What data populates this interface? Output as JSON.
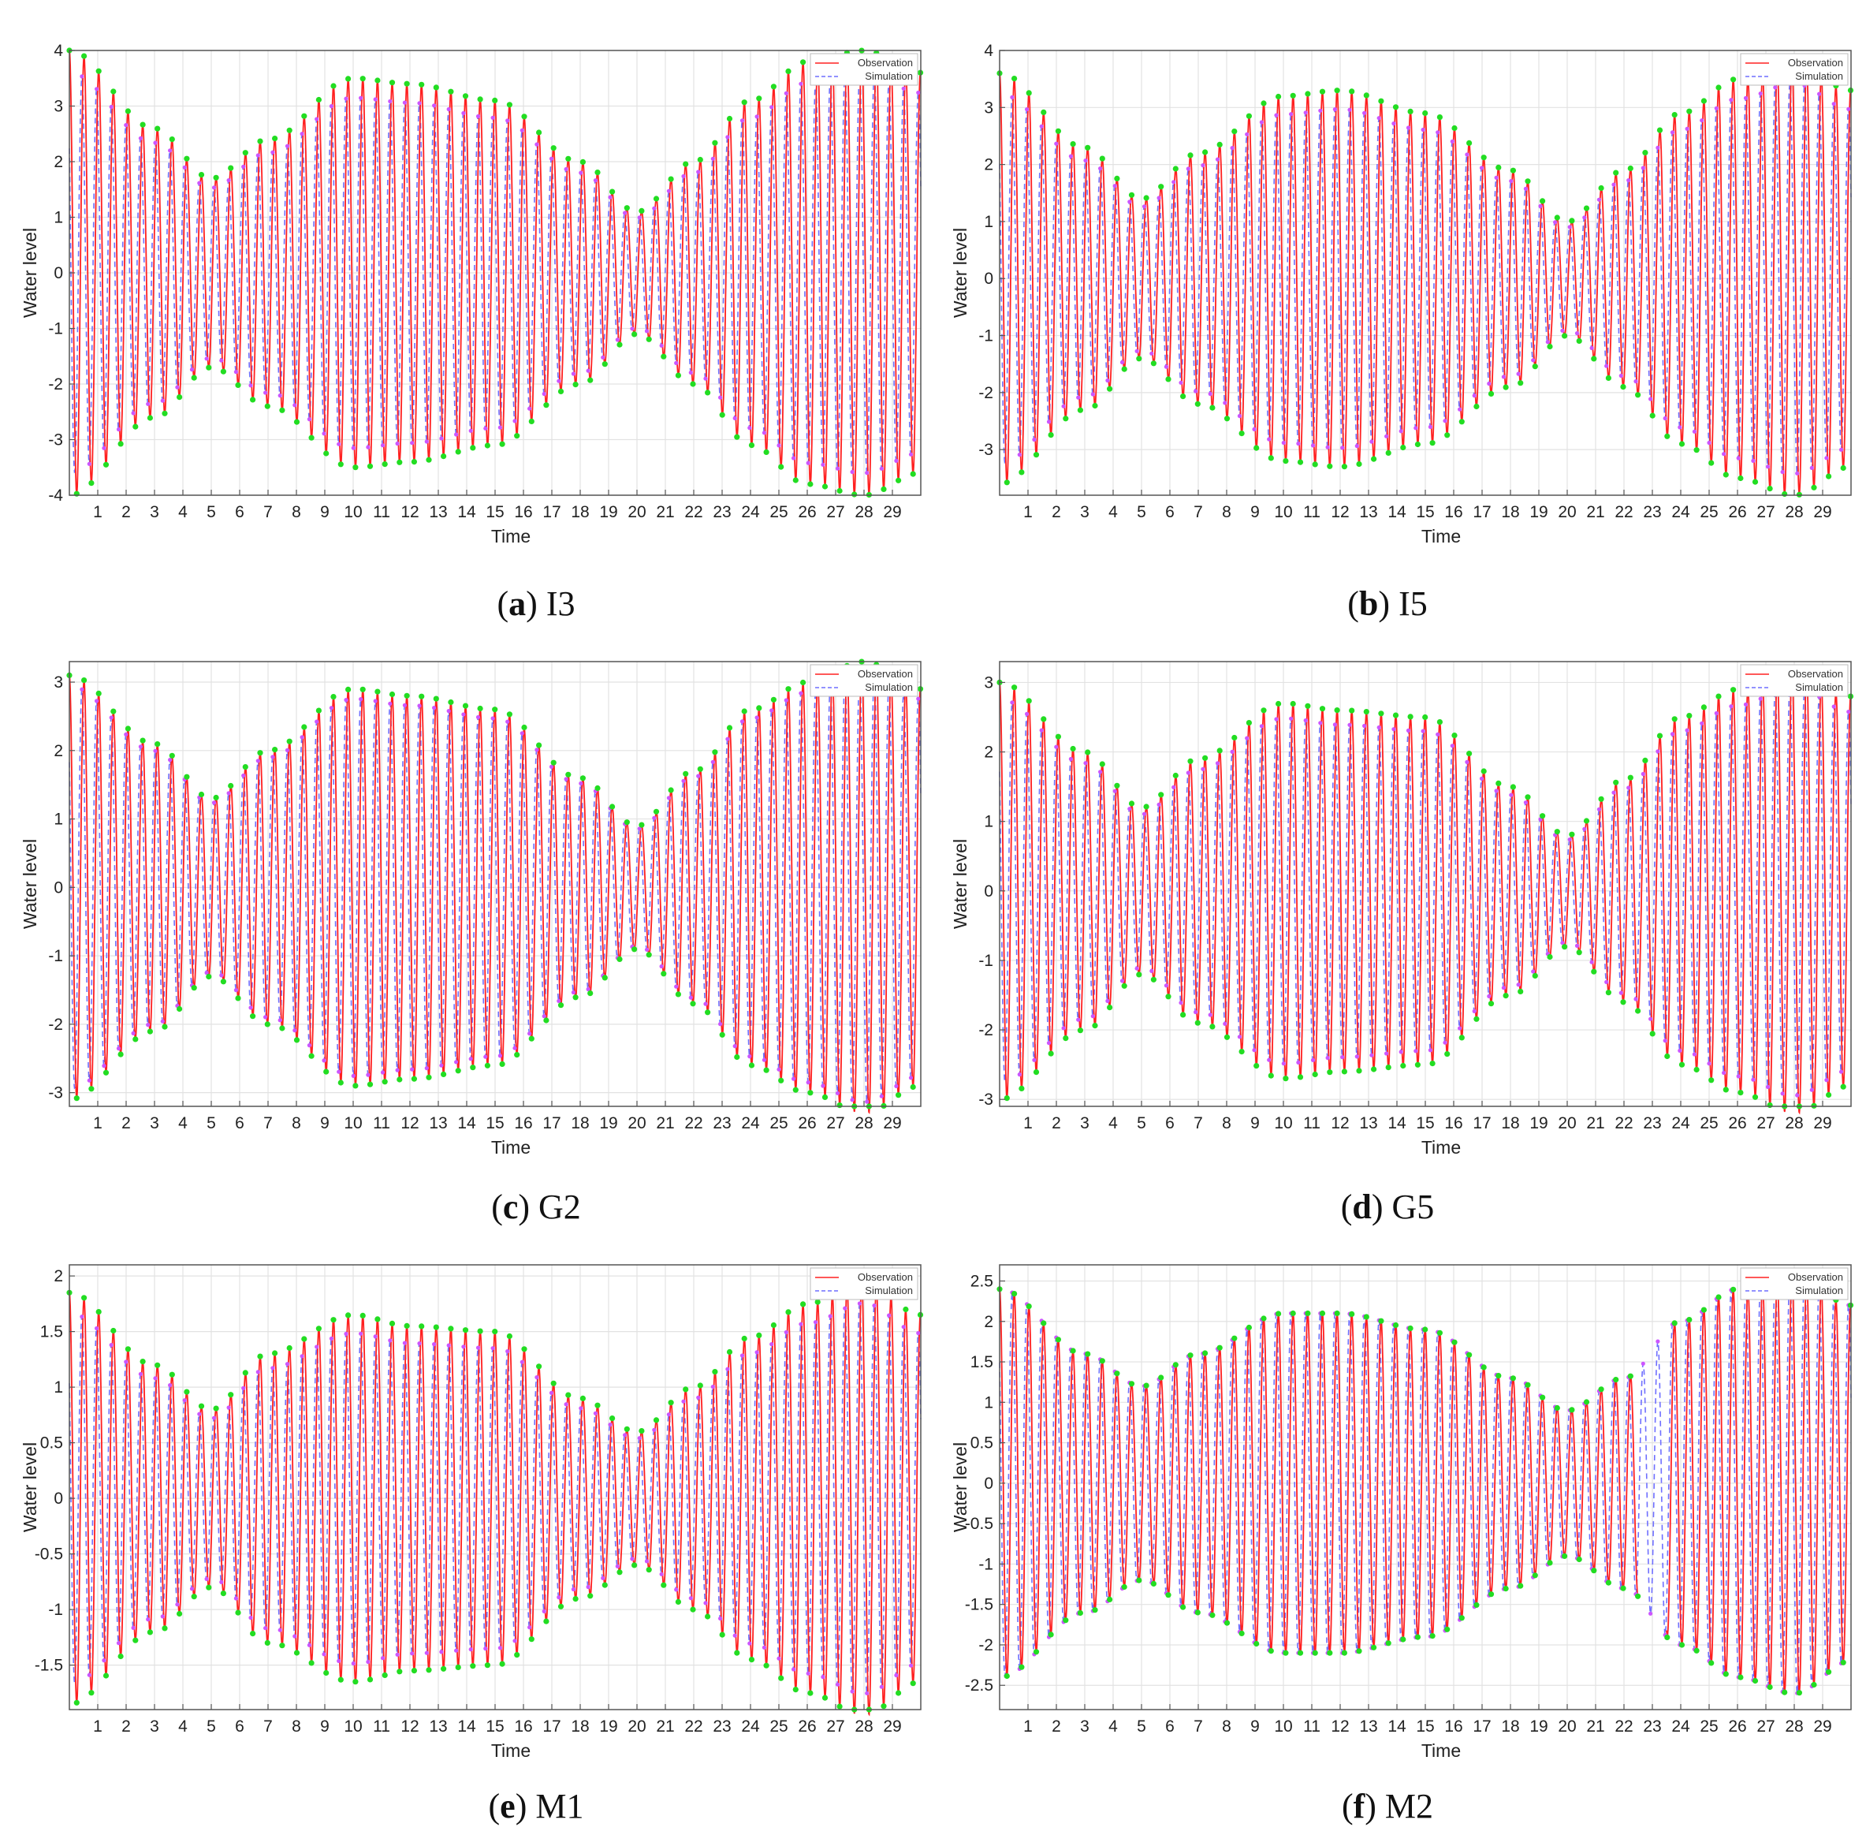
{
  "legend": {
    "observation": "Observation",
    "simulation": "Simulation"
  },
  "colors": {
    "observation": "#ff2020",
    "simulation": "#6f6fff",
    "observation_peak": "#22dd22",
    "simulation_peak": "#cc55ff",
    "grid": "#e2e2e2",
    "axis": "#555555"
  },
  "chart_data": [
    {
      "id": "a",
      "letter": "a",
      "station": "I3",
      "type": "line",
      "xlabel": "Time",
      "ylabel": "Water level",
      "xlim": [
        0,
        30
      ],
      "ylim": [
        -4,
        4
      ],
      "xticks": [
        1,
        2,
        3,
        4,
        5,
        6,
        7,
        8,
        9,
        10,
        11,
        12,
        13,
        14,
        15,
        16,
        17,
        18,
        19,
        20,
        21,
        22,
        23,
        24,
        25,
        26,
        27,
        28,
        29
      ],
      "yticks": [
        -4,
        -3,
        -2,
        -1,
        0,
        1,
        2,
        3,
        4
      ],
      "grid": true,
      "legend_position": "top-right",
      "envelope": {
        "x": [
          0,
          3,
          5,
          7,
          10,
          12,
          15,
          18,
          20,
          22,
          24,
          26,
          28,
          30
        ],
        "amplitude": [
          4.0,
          2.6,
          1.7,
          2.4,
          3.5,
          3.4,
          3.1,
          2.0,
          1.1,
          2.0,
          3.1,
          3.8,
          4.0,
          3.6
        ]
      },
      "series": [
        {
          "name": "Observation",
          "period_days": 0.517,
          "phase": 0.0
        },
        {
          "name": "Simulation",
          "period_days": 0.517,
          "phase": 0.9,
          "amplitude_scale": 0.9
        }
      ]
    },
    {
      "id": "b",
      "letter": "b",
      "station": "I5",
      "type": "line",
      "xlabel": "Time",
      "ylabel": "Water level",
      "xlim": [
        0,
        30
      ],
      "ylim": [
        -3.8,
        4
      ],
      "xticks": [
        1,
        2,
        3,
        4,
        5,
        6,
        7,
        8,
        9,
        10,
        11,
        12,
        13,
        14,
        15,
        16,
        17,
        18,
        19,
        20,
        21,
        22,
        23,
        24,
        25,
        26,
        27,
        28,
        29
      ],
      "yticks": [
        -3,
        -2,
        -1,
        0,
        1,
        2,
        3,
        4
      ],
      "grid": true,
      "legend_position": "top-right",
      "envelope": {
        "x": [
          0,
          3,
          5,
          7,
          10,
          12,
          15,
          18,
          20,
          22,
          24,
          26,
          28,
          30
        ],
        "amplitude": [
          3.6,
          2.3,
          1.4,
          2.2,
          3.2,
          3.3,
          2.9,
          1.9,
          1.0,
          1.9,
          2.9,
          3.5,
          3.8,
          3.3
        ]
      },
      "series": [
        {
          "name": "Observation",
          "period_days": 0.517,
          "phase": 0.0
        },
        {
          "name": "Simulation",
          "period_days": 0.517,
          "phase": 0.9,
          "amplitude_scale": 0.9
        }
      ]
    },
    {
      "id": "c",
      "letter": "c",
      "station": "G2",
      "type": "line",
      "xlabel": "Time",
      "ylabel": "Water level",
      "xlim": [
        0,
        30
      ],
      "ylim": [
        -3.2,
        3.3
      ],
      "xticks": [
        1,
        2,
        3,
        4,
        5,
        6,
        7,
        8,
        9,
        10,
        11,
        12,
        13,
        14,
        15,
        16,
        17,
        18,
        19,
        20,
        21,
        22,
        23,
        24,
        25,
        26,
        27,
        28,
        29
      ],
      "yticks": [
        -3,
        -2,
        -1,
        0,
        1,
        2,
        3
      ],
      "grid": true,
      "legend_position": "top-right",
      "envelope": {
        "x": [
          0,
          3,
          5,
          7,
          10,
          12,
          15,
          18,
          20,
          22,
          24,
          26,
          28,
          30
        ],
        "amplitude": [
          3.1,
          2.1,
          1.3,
          2.0,
          2.9,
          2.8,
          2.6,
          1.6,
          0.9,
          1.7,
          2.6,
          3.0,
          3.3,
          2.9
        ]
      },
      "series": [
        {
          "name": "Observation",
          "period_days": 0.517,
          "phase": 0.0
        },
        {
          "name": "Simulation",
          "period_days": 0.517,
          "phase": 0.9,
          "amplitude_scale": 0.95
        }
      ]
    },
    {
      "id": "d",
      "letter": "d",
      "station": "G5",
      "type": "line",
      "xlabel": "Time",
      "ylabel": "Water level",
      "xlim": [
        0,
        30
      ],
      "ylim": [
        -3.1,
        3.3
      ],
      "xticks": [
        1,
        2,
        3,
        4,
        5,
        6,
        7,
        8,
        9,
        10,
        11,
        12,
        13,
        14,
        15,
        16,
        17,
        18,
        19,
        20,
        21,
        22,
        23,
        24,
        25,
        26,
        27,
        28,
        29
      ],
      "yticks": [
        -3,
        -2,
        -1,
        0,
        1,
        2,
        3
      ],
      "grid": true,
      "legend_position": "top-right",
      "envelope": {
        "x": [
          0,
          3,
          5,
          7,
          10,
          12,
          15,
          18,
          20,
          22,
          24,
          26,
          28,
          30
        ],
        "amplitude": [
          3.0,
          2.0,
          1.2,
          1.9,
          2.7,
          2.6,
          2.5,
          1.5,
          0.8,
          1.6,
          2.5,
          2.9,
          3.2,
          2.8
        ]
      },
      "series": [
        {
          "name": "Observation",
          "period_days": 0.517,
          "phase": 0.0
        },
        {
          "name": "Simulation",
          "period_days": 0.517,
          "phase": 0.9,
          "amplitude_scale": 0.92
        }
      ]
    },
    {
      "id": "e",
      "letter": "e",
      "station": "M1",
      "type": "line",
      "xlabel": "Time",
      "ylabel": "Water level",
      "xlim": [
        0,
        30
      ],
      "ylim": [
        -1.9,
        2.1
      ],
      "xticks": [
        1,
        2,
        3,
        4,
        5,
        6,
        7,
        8,
        9,
        10,
        11,
        12,
        13,
        14,
        15,
        16,
        17,
        18,
        19,
        20,
        21,
        22,
        23,
        24,
        25,
        26,
        27,
        28,
        29
      ],
      "yticks": [
        -1.5,
        -1,
        -0.5,
        0,
        0.5,
        1,
        1.5,
        2
      ],
      "grid": true,
      "legend_position": "top-right",
      "envelope": {
        "x": [
          0,
          3,
          5,
          7,
          10,
          12,
          15,
          18,
          20,
          22,
          24,
          26,
          28,
          30
        ],
        "amplitude": [
          1.85,
          1.2,
          0.8,
          1.3,
          1.65,
          1.55,
          1.5,
          0.9,
          0.6,
          1.0,
          1.45,
          1.75,
          1.95,
          1.65
        ]
      },
      "series": [
        {
          "name": "Observation",
          "period_days": 0.517,
          "phase": 0.0
        },
        {
          "name": "Simulation",
          "period_days": 0.517,
          "phase": 0.9,
          "amplitude_scale": 0.9
        }
      ]
    },
    {
      "id": "f",
      "letter": "f",
      "station": "M2",
      "type": "line",
      "xlabel": "Time",
      "ylabel": "Water level",
      "xlim": [
        0,
        30
      ],
      "ylim": [
        -2.8,
        2.7
      ],
      "xticks": [
        1,
        2,
        3,
        4,
        5,
        6,
        7,
        8,
        9,
        10,
        11,
        12,
        13,
        14,
        15,
        16,
        17,
        18,
        19,
        20,
        21,
        22,
        23,
        24,
        25,
        26,
        27,
        28,
        29
      ],
      "yticks": [
        -2.5,
        -2,
        -1.5,
        -1,
        -0.5,
        0,
        0.5,
        1,
        1.5,
        2,
        2.5
      ],
      "grid": true,
      "legend_position": "top-right",
      "envelope": {
        "x": [
          0,
          3,
          5,
          7,
          10,
          12,
          15,
          18,
          20,
          22,
          24,
          26,
          28,
          30
        ],
        "amplitude": [
          2.4,
          1.6,
          1.2,
          1.6,
          2.1,
          2.1,
          1.9,
          1.3,
          0.9,
          1.3,
          2.0,
          2.4,
          2.6,
          2.2
        ]
      },
      "obs_gap": [
        22.5,
        23.5
      ],
      "series": [
        {
          "name": "Observation",
          "period_days": 0.517,
          "phase": 0.0
        },
        {
          "name": "Simulation",
          "period_days": 0.517,
          "phase": 0.9,
          "amplitude_scale": 1.0
        }
      ]
    }
  ]
}
